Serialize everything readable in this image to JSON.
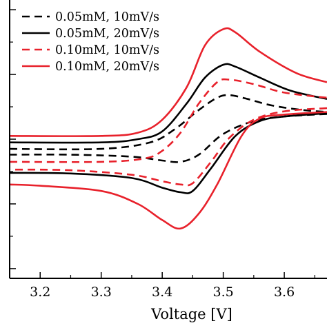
{
  "chart_data": {
    "type": "line",
    "title": "",
    "xlabel": "Voltage [V]",
    "ylabel": "",
    "xlim": [
      3.15,
      3.67
    ],
    "ylim": [
      -2.15,
      2.15
    ],
    "x_ticks": [
      "3.2",
      "3.3",
      "3.4",
      "3.5",
      "3.6"
    ],
    "x_tick_values": [
      3.2,
      3.3,
      3.4,
      3.5,
      3.6
    ],
    "y_tick_values": [
      2,
      1,
      0,
      -1,
      -2
    ],
    "y_ticks": [
      "",
      "",
      "",
      "",
      ""
    ],
    "grid": false,
    "legend_position": "top-left",
    "series": [
      {
        "name": "0.05mM, 10mV/s",
        "color": "#000000",
        "dash": "dashed",
        "forward": [
          [
            3.15,
            -0.15
          ],
          [
            3.3,
            -0.15
          ],
          [
            3.38,
            -0.05
          ],
          [
            3.42,
            0.15
          ],
          [
            3.46,
            0.45
          ],
          [
            3.49,
            0.64
          ],
          [
            3.51,
            0.68
          ],
          [
            3.54,
            0.62
          ],
          [
            3.58,
            0.52
          ],
          [
            3.63,
            0.45
          ],
          [
            3.67,
            0.42
          ]
        ],
        "reverse": [
          [
            3.67,
            0.39
          ],
          [
            3.6,
            0.35
          ],
          [
            3.55,
            0.28
          ],
          [
            3.5,
            0.08
          ],
          [
            3.46,
            -0.24
          ],
          [
            3.43,
            -0.35
          ],
          [
            3.4,
            -0.33
          ],
          [
            3.35,
            -0.27
          ],
          [
            3.25,
            -0.24
          ],
          [
            3.15,
            -0.24
          ]
        ]
      },
      {
        "name": "0.05mM, 20mV/s",
        "color": "#000000",
        "dash": "solid",
        "forward": [
          [
            3.15,
            -0.05
          ],
          [
            3.3,
            -0.05
          ],
          [
            3.36,
            0.0
          ],
          [
            3.4,
            0.12
          ],
          [
            3.44,
            0.55
          ],
          [
            3.47,
            0.95
          ],
          [
            3.5,
            1.15
          ],
          [
            3.52,
            1.12
          ],
          [
            3.56,
            0.95
          ],
          [
            3.61,
            0.75
          ],
          [
            3.67,
            0.62
          ]
        ],
        "reverse": [
          [
            3.67,
            0.4
          ],
          [
            3.6,
            0.35
          ],
          [
            3.56,
            0.28
          ],
          [
            3.52,
            0.05
          ],
          [
            3.48,
            -0.45
          ],
          [
            3.45,
            -0.8
          ],
          [
            3.43,
            -0.82
          ],
          [
            3.4,
            -0.75
          ],
          [
            3.35,
            -0.6
          ],
          [
            3.25,
            -0.53
          ],
          [
            3.15,
            -0.52
          ]
        ]
      },
      {
        "name": "0.10mM, 10mV/s",
        "color": "#e8212b",
        "dash": "dashed",
        "forward": [
          [
            3.15,
            -0.35
          ],
          [
            3.3,
            -0.35
          ],
          [
            3.37,
            -0.3
          ],
          [
            3.4,
            -0.18
          ],
          [
            3.43,
            0.1
          ],
          [
            3.46,
            0.55
          ],
          [
            3.49,
            0.88
          ],
          [
            3.51,
            0.92
          ],
          [
            3.55,
            0.85
          ],
          [
            3.6,
            0.72
          ],
          [
            3.67,
            0.64
          ]
        ],
        "reverse": [
          [
            3.67,
            0.48
          ],
          [
            3.6,
            0.43
          ],
          [
            3.55,
            0.3
          ],
          [
            3.51,
            0.02
          ],
          [
            3.48,
            -0.35
          ],
          [
            3.45,
            -0.68
          ],
          [
            3.43,
            -0.7
          ],
          [
            3.4,
            -0.65
          ],
          [
            3.35,
            -0.55
          ],
          [
            3.25,
            -0.48
          ],
          [
            3.15,
            -0.47
          ]
        ]
      },
      {
        "name": "0.10mM, 20mV/s",
        "color": "#e8212b",
        "dash": "solid",
        "forward": [
          [
            3.15,
            0.05
          ],
          [
            3.3,
            0.05
          ],
          [
            3.36,
            0.1
          ],
          [
            3.4,
            0.3
          ],
          [
            3.44,
            0.8
          ],
          [
            3.47,
            1.45
          ],
          [
            3.5,
            1.7
          ],
          [
            3.52,
            1.65
          ],
          [
            3.56,
            1.35
          ],
          [
            3.62,
            1.02
          ],
          [
            3.67,
            0.88
          ]
        ],
        "reverse": [
          [
            3.67,
            0.42
          ],
          [
            3.6,
            0.38
          ],
          [
            3.56,
            0.32
          ],
          [
            3.53,
            0.05
          ],
          [
            3.49,
            -0.7
          ],
          [
            3.46,
            -1.15
          ],
          [
            3.43,
            -1.38
          ],
          [
            3.4,
            -1.25
          ],
          [
            3.36,
            -1.0
          ],
          [
            3.3,
            -0.8
          ],
          [
            3.2,
            -0.72
          ],
          [
            3.15,
            -0.7
          ]
        ]
      }
    ]
  }
}
